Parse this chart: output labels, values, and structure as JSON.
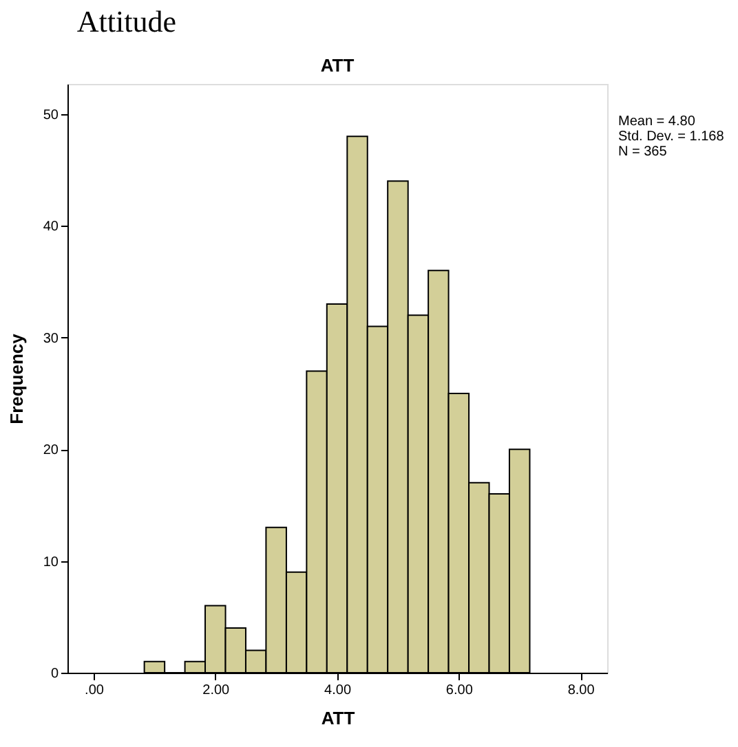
{
  "chart_data": {
    "type": "histogram",
    "title": "Attitude",
    "subtitle": "ATT",
    "xlabel": "ATT",
    "ylabel": "Frequency",
    "bins": [
      0.833,
      1.167,
      1.5,
      1.833,
      2.167,
      2.5,
      2.833,
      3.167,
      3.5,
      3.833,
      4.167,
      4.5,
      4.833,
      5.167,
      5.5,
      5.833,
      6.167,
      6.5,
      6.833,
      7.167
    ],
    "values": [
      1,
      0,
      1,
      6,
      4,
      2,
      13,
      9,
      27,
      33,
      48,
      31,
      44,
      32,
      36,
      25,
      17,
      16,
      20
    ],
    "color": "#d3cf98",
    "xlim": [
      -0.43,
      8.44
    ],
    "xticks": [
      {
        "value": 0,
        "label": ".00"
      },
      {
        "value": 2,
        "label": "2.00"
      },
      {
        "value": 4,
        "label": "4.00"
      },
      {
        "value": 6,
        "label": "6.00"
      },
      {
        "value": 8,
        "label": "8.00"
      }
    ],
    "ylim": [
      0,
      52.7
    ],
    "yticks": [
      0,
      10,
      20,
      30,
      40,
      50
    ],
    "grid": false,
    "annotations": [
      "Mean = 4.80",
      "Std. Dev. = 1.168",
      "N = 365"
    ]
  }
}
